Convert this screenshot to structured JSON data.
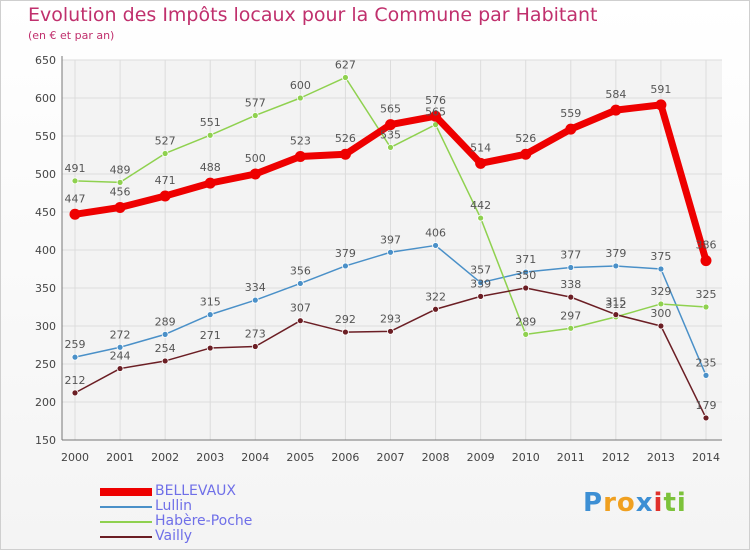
{
  "header": {
    "title": "Evolution des Impôts locaux pour la Commune par Habitant",
    "subtitle": "(en € et par an)"
  },
  "logo": {
    "parts": [
      "P",
      "r",
      "o",
      "x",
      "i",
      "t",
      "i"
    ]
  },
  "chart_data": {
    "type": "line",
    "title": "Evolution des Impôts locaux pour la Commune par Habitant",
    "subtitle": "(en € et par an)",
    "xlabel": "",
    "ylabel": "",
    "ylim": [
      150,
      650
    ],
    "yticks": [
      150,
      200,
      250,
      300,
      350,
      400,
      450,
      500,
      550,
      600,
      650
    ],
    "x": [
      "2000",
      "2001",
      "2002",
      "2003",
      "2004",
      "2005",
      "2006",
      "2007",
      "2008",
      "2009",
      "2010",
      "2011",
      "2012",
      "2013",
      "2014"
    ],
    "grid": true,
    "legend_position": "bottom-left",
    "series": [
      {
        "name": "BELLEVAUX",
        "color": "#ee0000",
        "values": [
          447,
          456,
          471,
          488,
          500,
          523,
          526,
          565,
          576,
          514,
          526,
          559,
          584,
          591,
          386
        ]
      },
      {
        "name": "Lullin",
        "color": "#4a90c8",
        "values": [
          259,
          272,
          289,
          315,
          334,
          356,
          379,
          397,
          406,
          357,
          371,
          377,
          379,
          375,
          235
        ]
      },
      {
        "name": "Habère-Poche",
        "color": "#8fd14f",
        "values": [
          491,
          489,
          527,
          551,
          577,
          600,
          627,
          535,
          565,
          442,
          289,
          297,
          312,
          329,
          325
        ]
      },
      {
        "name": "Vailly",
        "color": "#6b1e24",
        "values": [
          212,
          244,
          254,
          271,
          273,
          307,
          292,
          293,
          322,
          339,
          350,
          338,
          315,
          300,
          179
        ]
      }
    ]
  }
}
